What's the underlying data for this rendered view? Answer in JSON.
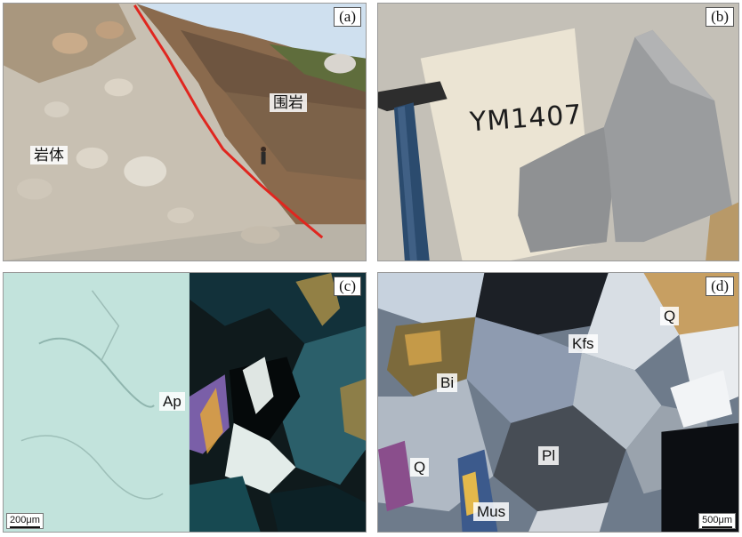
{
  "panels": {
    "a": {
      "label": "(a)",
      "country_rock": "围岩",
      "pluton": "岩体"
    },
    "b": {
      "label": "(b)",
      "sample_id": "YM1407"
    },
    "c": {
      "label": "(c)",
      "mineral": "Ap",
      "scale": "200μm"
    },
    "d": {
      "label": "(d)",
      "minerals": {
        "q_top": "Q",
        "kfs": "Kfs",
        "bi": "Bi",
        "pl": "Pl",
        "q_left": "Q",
        "mus": "Mus"
      },
      "scale": "500μm"
    }
  },
  "colors": {
    "contact_line": "#e0261f",
    "label_border": "#555555"
  }
}
